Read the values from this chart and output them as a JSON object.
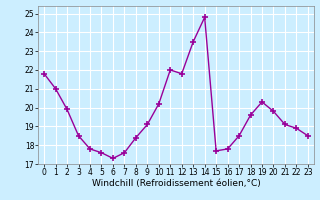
{
  "x": [
    0,
    1,
    2,
    3,
    4,
    5,
    6,
    7,
    8,
    9,
    10,
    11,
    12,
    13,
    14,
    15,
    16,
    17,
    18,
    19,
    20,
    21,
    22,
    23
  ],
  "y": [
    21.8,
    21.0,
    19.9,
    18.5,
    17.8,
    17.6,
    17.3,
    17.6,
    18.4,
    19.1,
    20.2,
    22.0,
    21.8,
    23.5,
    24.8,
    17.7,
    17.8,
    18.5,
    19.6,
    20.3,
    19.8,
    19.1,
    18.9,
    18.5
  ],
  "color": "#990099",
  "marker": "+",
  "markersize": 4,
  "linewidth": 1.0,
  "xlabel": "Windchill (Refroidissement éolien,°C)",
  "xlim": [
    -0.5,
    23.5
  ],
  "ylim": [
    17.0,
    25.4
  ],
  "yticks": [
    17,
    18,
    19,
    20,
    21,
    22,
    23,
    24,
    25
  ],
  "xticks": [
    0,
    1,
    2,
    3,
    4,
    5,
    6,
    7,
    8,
    9,
    10,
    11,
    12,
    13,
    14,
    15,
    16,
    17,
    18,
    19,
    20,
    21,
    22,
    23
  ],
  "background_color": "#cceeff",
  "grid_color": "#ffffff",
  "tick_labelsize": 5.5,
  "xlabel_fontsize": 6.5,
  "spine_color": "#888888"
}
